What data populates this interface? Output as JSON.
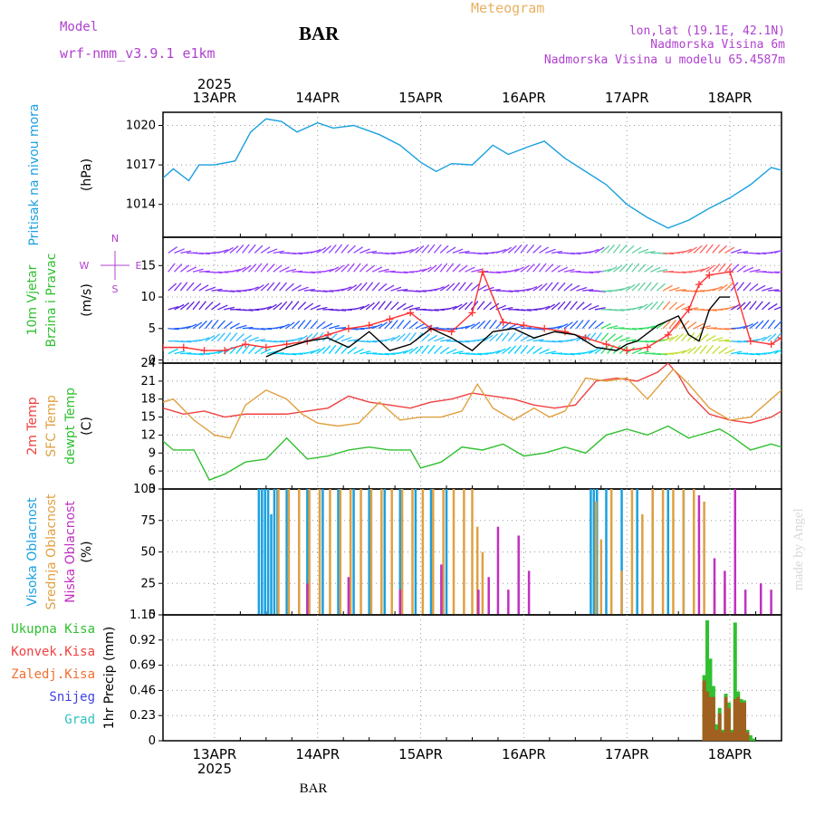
{
  "header": {
    "model_label": "Model",
    "model_name": "wrf-nmm_v3.9.1 e1km",
    "station_title": "BAR",
    "product": "Meteogram",
    "coords": "lon,lat (19.1E, 42.1N)",
    "elevation": "Nadmorska Visina 6m",
    "model_elevation": "Nadmorska Visina u modelu 65.4587m"
  },
  "footer": {
    "station": "BAR",
    "credit": "made by Angel"
  },
  "time_axis": {
    "year": "2025",
    "days": [
      "13APR",
      "14APR",
      "15APR",
      "16APR",
      "17APR",
      "18APR"
    ],
    "range_days": [
      12.5,
      18.5
    ]
  },
  "chart_data": [
    {
      "id": "pressure",
      "type": "line",
      "ylabel": "Pritisak na nivou mora",
      "unit": "(hPa)",
      "yticks": [
        "1014",
        "1017",
        "1020"
      ],
      "ylim": [
        1011.5,
        1021
      ],
      "series": [
        {
          "color": "#1aa0e0",
          "x": [
            12.5,
            12.6,
            12.75,
            12.85,
            13.0,
            13.2,
            13.35,
            13.5,
            13.65,
            13.8,
            14.0,
            14.15,
            14.35,
            14.6,
            14.8,
            15.0,
            15.15,
            15.3,
            15.5,
            15.7,
            15.85,
            16.05,
            16.2,
            16.4,
            16.5,
            16.6,
            16.8,
            17.0,
            17.2,
            17.4,
            17.5,
            17.6,
            17.8,
            18.0,
            18.2,
            18.4,
            18.5
          ],
          "y": [
            1016.0,
            1016.7,
            1015.8,
            1017.0,
            1017.0,
            1017.3,
            1019.5,
            1020.5,
            1020.3,
            1019.5,
            1020.2,
            1019.8,
            1020.0,
            1019.3,
            1018.5,
            1017.2,
            1016.5,
            1017.1,
            1017.0,
            1018.5,
            1017.8,
            1018.4,
            1018.8,
            1017.5,
            1017.0,
            1016.5,
            1015.5,
            1014.0,
            1013.0,
            1012.2,
            1012.5,
            1012.8,
            1013.7,
            1014.5,
            1015.5,
            1016.8,
            1016.6
          ]
        }
      ]
    },
    {
      "id": "wind",
      "type": "line",
      "ylabel": [
        "10m Vjetar",
        "Brzina i Pravac"
      ],
      "unit": "(m/s)",
      "compass": [
        "N",
        "W",
        "E",
        "S"
      ],
      "yticks": [
        "0",
        "5",
        "10",
        "15"
      ],
      "ylim": [
        -0.5,
        19.5
      ],
      "series": [
        {
          "color": "#ff3030",
          "marker": "+",
          "x": [
            12.5,
            12.7,
            12.9,
            13.1,
            13.3,
            13.5,
            13.7,
            13.9,
            14.1,
            14.3,
            14.5,
            14.7,
            14.9,
            15.1,
            15.3,
            15.5,
            15.6,
            15.8,
            16.0,
            16.2,
            16.4,
            16.6,
            16.8,
            17.0,
            17.2,
            17.4,
            17.6,
            17.7,
            17.8,
            18.0,
            18.2,
            18.4,
            18.5
          ],
          "y": [
            2.0,
            2.0,
            1.5,
            1.5,
            2.5,
            2.0,
            2.5,
            3.0,
            4.0,
            5.0,
            5.5,
            6.5,
            7.5,
            5.0,
            4.5,
            7.5,
            14.0,
            6.0,
            5.5,
            5.0,
            4.5,
            3.5,
            2.5,
            1.5,
            2.0,
            4.0,
            8.0,
            12.0,
            13.5,
            14.0,
            3.0,
            2.5,
            3.5
          ]
        },
        {
          "color": "#000000",
          "x": [
            13.5,
            13.7,
            13.9,
            14.1,
            14.3,
            14.5,
            14.7,
            14.9,
            15.1,
            15.3,
            15.5,
            15.7,
            15.9,
            16.1,
            16.3,
            16.5,
            16.7,
            16.9,
            17.0,
            17.1,
            17.3,
            17.5,
            17.6,
            17.7,
            17.8,
            17.9,
            18.0
          ],
          "y": [
            0.5,
            2.0,
            3.0,
            3.5,
            2.0,
            4.5,
            1.5,
            2.5,
            5.0,
            3.5,
            1.5,
            4.5,
            5.0,
            3.5,
            4.5,
            4.0,
            2.0,
            1.5,
            2.5,
            3.0,
            5.5,
            7.0,
            4.0,
            3.0,
            8.0,
            10.0,
            10.0
          ]
        }
      ]
    },
    {
      "id": "temperature",
      "type": "line",
      "ylabel": [
        "2m Temp",
        "SFC Temp",
        "dewpt Temp"
      ],
      "unit": "(C)",
      "yticks": [
        "3",
        "6",
        "9",
        "12",
        "15",
        "18",
        "21",
        "24"
      ],
      "ylim": [
        3,
        24
      ],
      "series": [
        {
          "name": "2m Temp",
          "color": "#f04040",
          "x": [
            12.5,
            12.7,
            12.9,
            13.1,
            13.3,
            13.5,
            13.7,
            13.9,
            14.1,
            14.3,
            14.5,
            14.7,
            14.9,
            15.1,
            15.3,
            15.5,
            15.7,
            15.9,
            16.1,
            16.3,
            16.5,
            16.7,
            16.9,
            17.1,
            17.3,
            17.4,
            17.5,
            17.6,
            17.8,
            18.0,
            18.2,
            18.4,
            18.5
          ],
          "y": [
            16.5,
            15.5,
            16.0,
            15.0,
            15.5,
            15.5,
            15.5,
            16.0,
            16.5,
            18.5,
            17.5,
            17.0,
            16.5,
            17.5,
            18.0,
            19.0,
            18.5,
            18.0,
            17.0,
            16.5,
            17.0,
            21.0,
            21.5,
            21.0,
            22.5,
            24.0,
            22.0,
            19.0,
            15.5,
            14.5,
            14.0,
            15.0,
            16.0
          ]
        },
        {
          "name": "SFC Temp",
          "color": "#e0a040",
          "x": [
            12.5,
            12.6,
            12.8,
            13.0,
            13.15,
            13.3,
            13.5,
            13.7,
            13.85,
            14.0,
            14.2,
            14.4,
            14.6,
            14.8,
            15.0,
            15.2,
            15.4,
            15.55,
            15.7,
            15.9,
            16.1,
            16.25,
            16.4,
            16.6,
            16.8,
            17.0,
            17.2,
            17.35,
            17.45,
            17.6,
            17.8,
            18.0,
            18.2,
            18.4,
            18.5
          ],
          "y": [
            17.5,
            18.0,
            14.5,
            12.0,
            11.5,
            17.0,
            19.5,
            18.0,
            15.5,
            14.0,
            13.5,
            14.0,
            17.5,
            14.5,
            15.0,
            15.0,
            16.0,
            20.5,
            16.5,
            14.5,
            16.5,
            15.0,
            16.0,
            21.5,
            21.0,
            21.5,
            18.0,
            21.0,
            23.0,
            20.5,
            16.5,
            14.5,
            15.0,
            18.0,
            19.5
          ]
        },
        {
          "name": "dewpt Temp",
          "color": "#30c030",
          "x": [
            12.5,
            12.6,
            12.8,
            12.95,
            13.1,
            13.3,
            13.5,
            13.7,
            13.9,
            14.1,
            14.3,
            14.5,
            14.7,
            14.9,
            15.0,
            15.2,
            15.4,
            15.6,
            15.8,
            16.0,
            16.2,
            16.4,
            16.6,
            16.8,
            17.0,
            17.2,
            17.4,
            17.6,
            17.8,
            17.9,
            18.0,
            18.2,
            18.4,
            18.5
          ],
          "y": [
            11.0,
            9.5,
            9.5,
            4.5,
            5.5,
            7.5,
            8.0,
            11.5,
            8.0,
            8.5,
            9.5,
            10.0,
            9.5,
            9.5,
            6.5,
            7.5,
            10.0,
            9.5,
            10.5,
            8.5,
            9.0,
            10.0,
            9.0,
            12.0,
            13.0,
            12.0,
            13.5,
            11.5,
            12.5,
            13.0,
            12.0,
            9.5,
            10.5,
            10.0
          ]
        }
      ]
    },
    {
      "id": "clouds",
      "type": "bar",
      "ylabel": [
        "Visoka Oblacnost",
        "Srednja Oblacnost",
        "Niska Oblacnost"
      ],
      "unit": "(%)",
      "yticks": [
        "0",
        "25",
        "50",
        "75",
        "100"
      ],
      "ylim": [
        0,
        100
      ],
      "series": [
        {
          "name": "Visoka Oblacnost",
          "color": "#1aa0e0",
          "x": [
            13.43,
            13.46,
            13.49,
            13.52,
            13.55,
            13.58,
            13.61,
            13.7,
            13.9,
            14.05,
            14.2,
            14.35,
            14.5,
            14.65,
            14.8,
            14.95,
            15.1,
            15.25,
            16.65,
            16.68,
            16.71,
            16.8,
            16.95,
            17.1,
            17.25,
            17.4,
            17.55
          ],
          "values": [
            100,
            100,
            100,
            100,
            80,
            100,
            100,
            100,
            100,
            100,
            100,
            100,
            100,
            100,
            100,
            100,
            100,
            100,
            100,
            100,
            100,
            100,
            100,
            100,
            100,
            100,
            100
          ]
        },
        {
          "name": "Srednja Oblacnost",
          "color": "#e0a040",
          "x": [
            13.62,
            13.72,
            13.82,
            13.92,
            14.02,
            14.12,
            14.22,
            14.32,
            14.42,
            14.52,
            14.62,
            14.72,
            14.82,
            14.92,
            15.02,
            15.12,
            15.22,
            15.32,
            15.42,
            15.5,
            15.55,
            15.6,
            16.7,
            16.75,
            16.85,
            16.95,
            17.05,
            17.15,
            17.25,
            17.35,
            17.45,
            17.55,
            17.65,
            17.75,
            17.85,
            17.95,
            18.05
          ],
          "values": [
            100,
            100,
            100,
            100,
            100,
            100,
            100,
            100,
            100,
            100,
            100,
            100,
            100,
            100,
            100,
            100,
            100,
            100,
            100,
            100,
            70,
            50,
            90,
            60,
            100,
            35,
            100,
            80,
            100,
            100,
            100,
            100,
            100,
            90,
            20,
            25,
            20
          ]
        },
        {
          "name": "Niska Oblacnost",
          "color": "#c030c0",
          "x": [
            13.9,
            14.3,
            14.8,
            15.2,
            15.56,
            15.66,
            15.75,
            15.85,
            15.95,
            16.05,
            17.7,
            17.85,
            17.95,
            18.05,
            18.15,
            18.3,
            18.4
          ],
          "values": [
            25,
            30,
            20,
            40,
            20,
            30,
            70,
            20,
            63,
            35,
            95,
            45,
            35,
            100,
            20,
            25,
            20
          ]
        }
      ]
    },
    {
      "id": "precip",
      "type": "bar",
      "ylabel": [
        "Ukupna Kisa",
        "Konvek.Kisa",
        "Zaledj.Kisa",
        "Snijeg",
        "Grad"
      ],
      "label_colors": [
        "#30c030",
        "#f04040",
        "#f07030",
        "#4040e0",
        "#30c0c0"
      ],
      "unit": "1hr Precip (mm)",
      "yticks": [
        "0",
        "0.23",
        "0.46",
        "0.69",
        "0.92",
        "1.15"
      ],
      "ylim": [
        0,
        1.15
      ],
      "series": [
        {
          "name": "Ukupna Kisa",
          "color": "#30c030",
          "x": [
            17.75,
            17.78,
            17.81,
            17.84,
            17.87,
            17.9,
            17.93,
            17.96,
            17.99,
            18.02,
            18.05,
            18.08,
            18.11,
            18.14,
            18.17,
            18.2,
            18.23
          ],
          "values": [
            0.6,
            1.1,
            0.75,
            0.5,
            0.15,
            0.3,
            0.1,
            0.43,
            0.35,
            0.1,
            1.08,
            0.45,
            0.38,
            0.37,
            0.1,
            0.05,
            0.02
          ]
        },
        {
          "name": "Konvek.Kisa",
          "color": "#a06020",
          "x": [
            17.75,
            17.78,
            17.81,
            17.84,
            17.87,
            17.9,
            17.93,
            17.96,
            17.99,
            18.02,
            18.05,
            18.08,
            18.11,
            18.14,
            18.17
          ],
          "values": [
            0.55,
            0.45,
            0.4,
            0.4,
            0.1,
            0.25,
            0.08,
            0.4,
            0.3,
            0.08,
            0.38,
            0.4,
            0.35,
            0.35,
            0.08
          ]
        }
      ]
    }
  ]
}
